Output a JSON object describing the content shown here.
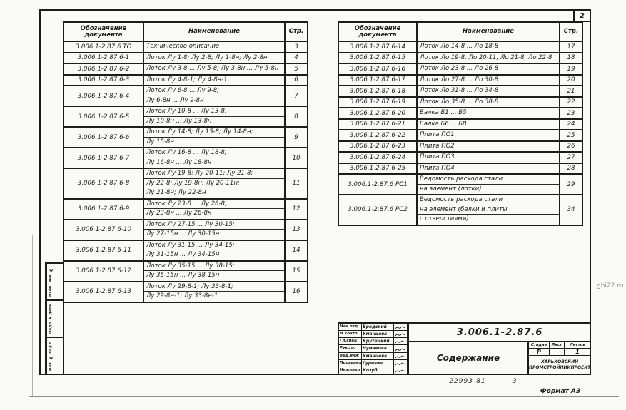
{
  "page": {
    "corner_sheet_number": "2",
    "footer_order_number": "22993-81",
    "footer_sheet_number": "3",
    "format_label": "Формат А3",
    "watermark": "gbi22.ru",
    "ink_color": "#1c1c1c",
    "paper_color": "#fafaf7"
  },
  "table_headers": {
    "designation": "Обозначение документа",
    "name": "Наименование",
    "page": "Стр."
  },
  "left_table": {
    "rows": [
      {
        "designation": "3.006.1-2.87.6 ТО",
        "name_lines": [
          "Техническое описание"
        ],
        "page": "3"
      },
      {
        "designation": "3.006.1-2.87.6-1",
        "name_lines": [
          "Лоток Лу 1-8; Лу 2-8; Лу 1-8н; Лу 2-8н"
        ],
        "page": "4"
      },
      {
        "designation": "3.006.1-2.87.6-2",
        "name_lines": [
          "Лоток Лу 3-8 ... Лу 5-8; Лу 3-8н ... Лу 5-8н"
        ],
        "page": "5"
      },
      {
        "designation": "3.006.1-2.87.6-3",
        "name_lines": [
          "Лоток Лу 4-8-1; Лу 4-8н-1"
        ],
        "page": "6"
      },
      {
        "designation": "3.006.1-2.87.6-4",
        "name_lines": [
          "Лоток Лу 6-8 ... Лу 9-8;",
          "Лу 6-8н ... Лу 9-8н"
        ],
        "page": "7"
      },
      {
        "designation": "3.006.1-2.87.6-5",
        "name_lines": [
          "Лоток Лу 10-8 ... Лу 13-8;",
          "Лу 10-8н ... Лу 13-8н"
        ],
        "page": "8"
      },
      {
        "designation": "3.006.1-2.87.6-6",
        "name_lines": [
          "Лоток Лу 14-8; Лу 15-8; Лу 14-8н;",
          "Лу 15-8н"
        ],
        "page": "9"
      },
      {
        "designation": "3.006.1-2.87.6-7",
        "name_lines": [
          "Лоток Лу 16-8 ... Лу 18-8;",
          "Лу 16-8н ... Лу 18-8н"
        ],
        "page": "10"
      },
      {
        "designation": "3.006.1-2.87.6-8",
        "name_lines": [
          "Лоток Лу 19-8; Лу 20-11; Лу 21-8;",
          "Лу 22-8; Лу 19-8н; Лу 20-11н;",
          "Лу 21-8н; Лу 22-8н"
        ],
        "page": "11"
      },
      {
        "designation": "3.006.1-2.87.6-9",
        "name_lines": [
          "Лоток Лу 23-8 ... Лу 26-8;",
          "Лу 23-8н ... Лу 26-8н"
        ],
        "page": "12"
      },
      {
        "designation": "3.006.1-2.87.6-10",
        "name_lines": [
          "Лоток Лу 27-15 ... Лу 30-15;",
          "Лу 27-15н ... Лу 30-15н"
        ],
        "page": "13"
      },
      {
        "designation": "3.006.1-2.87.6-11",
        "name_lines": [
          "Лоток Лу 31-15 ... Лу 34-15;",
          "Лу 31-15н ... Лу 34-15н"
        ],
        "page": "14"
      },
      {
        "designation": "3.006.1-2.87.6-12",
        "name_lines": [
          "Лоток Лу 35-15 ... Лу 38-15;",
          "Лу 35-15н ... Лу 38-15н"
        ],
        "page": "15"
      },
      {
        "designation": "3.006.1-2.87.6-13",
        "name_lines": [
          "Лоток Лу 29-8-1; Лу 33-8-1;",
          "Лу 29-8н-1; Лу 33-8н-1"
        ],
        "page": "16"
      }
    ]
  },
  "right_table": {
    "rows": [
      {
        "designation": "3.006.1-2.87.6-14",
        "name_lines": [
          "Лоток Ло 14-8 ... Ло 18-8"
        ],
        "page": "17"
      },
      {
        "designation": "3.006.1-2.87.6-15",
        "name_lines": [
          "Лоток Ло 19-8, Ло 20-11, Ло 21-8, Ло 22-8"
        ],
        "page": "18"
      },
      {
        "designation": "3.006.1-2.87.6-16",
        "name_lines": [
          "Лоток Ло 23-8 ... Ло 26-8"
        ],
        "page": "19"
      },
      {
        "designation": "3.006.1-2.87.6-17",
        "name_lines": [
          "Лоток Ло 27-8 ... Ло 30-8"
        ],
        "page": "20"
      },
      {
        "designation": "3.006.1-2.87.6-18",
        "name_lines": [
          "Лоток Ло 31-8 ... Ло 34-8"
        ],
        "page": "21"
      },
      {
        "designation": "3.006.1-2.87.6-19",
        "name_lines": [
          "Лоток Ло 35-8 ... Ло 38-8"
        ],
        "page": "22"
      },
      {
        "designation": "3.006.1-2.87.6-20",
        "name_lines": [
          "Балка Б1 ... Б5"
        ],
        "page": "23"
      },
      {
        "designation": "3.006.1-2.87.6-21",
        "name_lines": [
          "Балка Б6 ... Б8"
        ],
        "page": "24"
      },
      {
        "designation": "3.006.1-2.87.6-22",
        "name_lines": [
          "Плита ПО1"
        ],
        "page": "25"
      },
      {
        "designation": "3.006.1-2.87.6-23",
        "name_lines": [
          "Плита ПО2"
        ],
        "page": "26"
      },
      {
        "designation": "3.006.1-2.87.6-24",
        "name_lines": [
          "Плита ПО3"
        ],
        "page": "27"
      },
      {
        "designation": "3.006.1-2.87.6-25",
        "name_lines": [
          "Плита ПО4"
        ],
        "page": "28"
      },
      {
        "designation": "3.006.1-2.87.6 РС1",
        "name_lines": [
          "Ведомость расхода стали",
          "на элемент (лотки)"
        ],
        "page": "29"
      },
      {
        "designation": "3.006.1-2.87.6 РС2",
        "name_lines": [
          "Ведомость расхода стали",
          "на элемент (балки и плиты",
          "с отверстиями)"
        ],
        "page": "34"
      }
    ]
  },
  "title_block": {
    "doc_number": "3.006.1-2.87.6",
    "doc_title": "Содержание",
    "organization_lines": [
      "ХАРЬКОВСКИЙ",
      "ПРОМСТРОЙНИИПРОЕКТ"
    ],
    "stage_columns": [
      "Стадия",
      "Лист",
      "Листов"
    ],
    "stage_values": [
      "Р",
      "",
      "1"
    ],
    "signatures": [
      {
        "role": "Нач.отд",
        "name": "Бродский"
      },
      {
        "role": "Н.контр",
        "name": "Уманцева"
      },
      {
        "role": "Гл.спец",
        "name": "Крутецкий"
      },
      {
        "role": "Рук.гр.",
        "name": "Чумакова"
      },
      {
        "role": "Вед.инж",
        "name": "Уманцева"
      },
      {
        "role": "Проверил",
        "name": "Гуревич"
      },
      {
        "role": "Инженер",
        "name": "Козуб"
      }
    ]
  },
  "side_stamp": {
    "labels": [
      "Взам. инв. №",
      "Подп. и дата",
      "Инв. № подл."
    ]
  }
}
